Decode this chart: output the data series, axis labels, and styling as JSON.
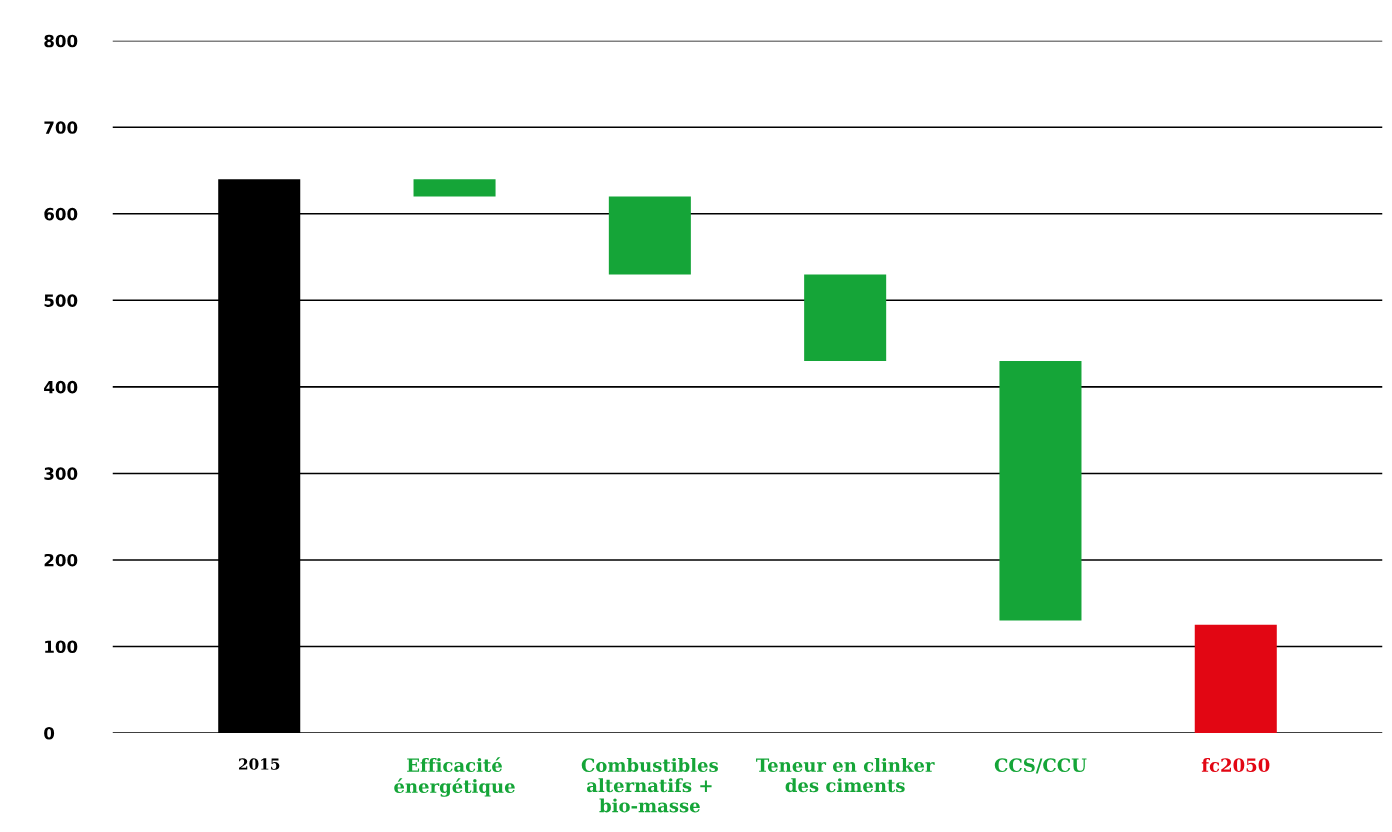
{
  "chart_data": {
    "type": "bar",
    "categories": [
      "2015",
      "Efficacité énergétique",
      "Combustibles alternatifs + bio-masse",
      "Teneur en clinker des ciments",
      "CCS/CCU",
      "fc2050"
    ],
    "values": [
      640,
      20,
      90,
      100,
      300,
      125
    ],
    "base": [
      0,
      620,
      530,
      430,
      130,
      0
    ],
    "colors": [
      "#000000",
      "#15a538",
      "#15a538",
      "#15a538",
      "#15a538",
      "#e20613"
    ],
    "ylim": [
      0,
      800
    ],
    "yticks": [
      0,
      100,
      200,
      300,
      400,
      500,
      600,
      700,
      800
    ],
    "grid": "y",
    "legend": false
  }
}
